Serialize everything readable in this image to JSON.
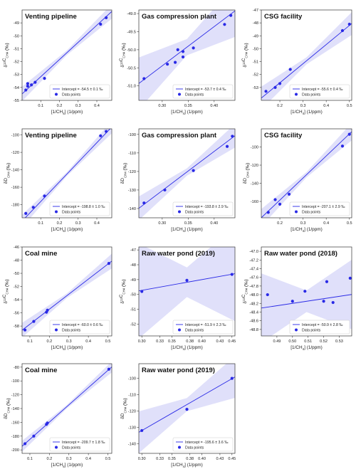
{
  "chart_data": [
    {
      "type": "scatter",
      "title": "Venting pipeline",
      "xlabel": "[1/CH4] (1/ppm)",
      "ylabel": "δ13C CH4 (‰)",
      "xlim": [
        0.0,
        0.48
      ],
      "ylim": [
        -55,
        -48
      ],
      "xticks": [
        0.1,
        0.2,
        0.3,
        0.4
      ],
      "xtick_labels": [
        "0.1",
        "0.2",
        "0.3",
        "0.4"
      ],
      "yticks": [
        -55,
        -54,
        -53,
        -52,
        -51,
        -50,
        -49
      ],
      "ytick_labels": [
        "-55",
        "-54",
        "-53",
        "-52",
        "-51",
        "-50",
        "-49"
      ],
      "x": [
        0.02,
        0.03,
        0.03,
        0.05,
        0.07,
        0.12,
        0.42,
        0.45
      ],
      "y": [
        -54.2,
        -53.9,
        -53.7,
        -53.8,
        -53.6,
        -53.3,
        -49.1,
        -48.6
      ],
      "fit": {
        "intercept": -54.5,
        "slope": 13.3,
        "band": 0.35
      },
      "legend": {
        "fit_label": "Intercept = -54.5 ± 0.1 ‰",
        "points_label": "Data points"
      }
    },
    {
      "type": "scatter",
      "title": "Gas compression plant",
      "xlabel": "[1/CH4] (1/ppm)",
      "ylabel": "δ13C CH4 (‰)",
      "xlim": [
        0.255,
        0.44
      ],
      "ylim": [
        -51.4,
        -48.9
      ],
      "xticks": [
        0.3,
        0.35,
        0.4
      ],
      "xtick_labels": [
        "0.30",
        "0.35",
        "0.40"
      ],
      "yticks": [
        -51.0,
        -50.5,
        -50.0,
        -49.5,
        -49.0
      ],
      "ytick_labels": [
        "-51.0",
        "-50.5",
        "-50.0",
        "-49.5",
        "-49.0"
      ],
      "x": [
        0.265,
        0.31,
        0.325,
        0.33,
        0.34,
        0.34,
        0.36,
        0.42,
        0.432
      ],
      "y": [
        -50.8,
        -50.4,
        -50.35,
        -50.0,
        -50.2,
        -50.05,
        -49.95,
        -49.3,
        -49.05
      ],
      "fit": {
        "intercept": -53.7,
        "slope": 10.85,
        "band": 0.45
      },
      "legend": {
        "fit_label": "Intercept = -53.7 ± 0.4 ‰",
        "points_label": "Data points"
      }
    },
    {
      "type": "scatter",
      "title": "CSG facility",
      "xlabel": "[1/CH4] (1/ppm)",
      "ylabel": "δ13C CH4 (‰)",
      "xlim": [
        0.12,
        0.51
      ],
      "ylim": [
        -54,
        -47
      ],
      "xticks": [
        0.2,
        0.3,
        0.4,
        0.5
      ],
      "xtick_labels": [
        "0.2",
        "0.3",
        "0.4",
        "0.5"
      ],
      "yticks": [
        -53,
        -52,
        -51,
        -50,
        -49,
        -48,
        -47
      ],
      "ytick_labels": [
        "-53",
        "-52",
        "-51",
        "-50",
        "-49",
        "-48",
        "-47"
      ],
      "x": [
        0.14,
        0.18,
        0.2,
        0.245,
        0.47,
        0.5
      ],
      "y": [
        -53.3,
        -53.0,
        -52.7,
        -51.6,
        -48.6,
        -48.1
      ],
      "fit": {
        "intercept": -55.6,
        "slope": 14.8,
        "band": 0.55
      },
      "legend": {
        "fit_label": "Intercept = -55.6 ± 0.4 ‰",
        "points_label": "Data points"
      }
    },
    {
      "type": "scatter",
      "title": "Venting pipeline",
      "xlabel": "[1/CH4] (1/ppm)",
      "ylabel": "δD CH4 (‰)",
      "xlim": [
        0.0,
        0.48
      ],
      "ylim": [
        -195,
        -93
      ],
      "xticks": [
        0.1,
        0.2,
        0.3,
        0.4
      ],
      "xtick_labels": [
        "0.1",
        "0.2",
        "0.3",
        "0.4"
      ],
      "yticks": [
        -180,
        -160,
        -140,
        -120,
        -100
      ],
      "ytick_labels": [
        "-180",
        "-160",
        "-140",
        "-120",
        "-100"
      ],
      "x": [
        0.02,
        0.06,
        0.12,
        0.42,
        0.45
      ],
      "y": [
        -190,
        -183,
        -170,
        -101,
        -96
      ],
      "fit": {
        "intercept": -198.8,
        "slope": 224.7,
        "band": 4.5
      },
      "legend": {
        "fit_label": "Intercept = -198.8 ± 1.0 ‰",
        "points_label": "Data points"
      }
    },
    {
      "type": "scatter",
      "title": "Gas compression plant",
      "xlabel": "[1/CH4] (1/ppm)",
      "ylabel": "δD CH4 (‰)",
      "xlim": [
        0.255,
        0.44
      ],
      "ylim": [
        -145,
        -97
      ],
      "xticks": [
        0.3,
        0.35,
        0.4
      ],
      "xtick_labels": [
        "0.30",
        "0.35",
        "0.40"
      ],
      "yticks": [
        -140,
        -130,
        -120,
        -110,
        -100
      ],
      "ytick_labels": [
        "-140",
        "-130",
        "-120",
        "-110",
        "-100"
      ],
      "x": [
        0.265,
        0.305,
        0.36,
        0.425,
        0.435
      ],
      "y": [
        -137,
        -130,
        -119.5,
        -106.5,
        -101
      ],
      "fit": {
        "intercept": -193.8,
        "slope": 211.5,
        "band": 4.0
      },
      "legend": {
        "fit_label": "Intercept = -193.8 ± 2.9 ‰",
        "points_label": "Data points"
      }
    },
    {
      "type": "scatter",
      "title": "CSG facility",
      "xlabel": "[1/CH4] (1/ppm)",
      "ylabel": "δD CH4 (‰)",
      "xlim": [
        0.12,
        0.51
      ],
      "ylim": [
        -178,
        -80
      ],
      "xticks": [
        0.2,
        0.3,
        0.4,
        0.5
      ],
      "xtick_labels": [
        "0.2",
        "0.3",
        "0.4",
        "0.5"
      ],
      "yticks": [
        -160,
        -140,
        -120,
        -100
      ],
      "ytick_labels": [
        "-160",
        "-140",
        "-120",
        "-100"
      ],
      "x": [
        0.15,
        0.18,
        0.2,
        0.24,
        0.47,
        0.5
      ],
      "y": [
        -172,
        -158,
        -163,
        -152,
        -99,
        -86
      ],
      "fit": {
        "intercept": -207.1,
        "slope": 243.0,
        "band": 6.0
      },
      "legend": {
        "fit_label": "Intercept = -207.1 ± 2.9 ‰",
        "points_label": "Data points"
      }
    },
    {
      "type": "scatter",
      "title": "Coal mine",
      "xlabel": "[1/CH4] (1/ppm)",
      "ylabel": "δ13C CH4 (‰)",
      "xlim": [
        0.06,
        0.52
      ],
      "ylim": [
        -59.5,
        -46
      ],
      "xticks": [
        0.1,
        0.2,
        0.3,
        0.4,
        0.5
      ],
      "xtick_labels": [
        "0.1",
        "0.2",
        "0.3",
        "0.4",
        "0.5"
      ],
      "yticks": [
        -58,
        -56,
        -54,
        -52,
        -50,
        -48,
        -46
      ],
      "ytick_labels": [
        "-58",
        "-56",
        "-54",
        "-52",
        "-50",
        "-48",
        "-46"
      ],
      "x": [
        0.075,
        0.12,
        0.185,
        0.19,
        0.505
      ],
      "y": [
        -58.6,
        -57.3,
        -55.9,
        -55.6,
        -48.5
      ],
      "fit": {
        "intercept": -60.0,
        "slope": 22.8,
        "band": 0.7
      },
      "legend": {
        "fit_label": "Intercept = -60.0 ± 0.6 ‰",
        "points_label": "Data points"
      }
    },
    {
      "type": "scatter",
      "title": "Raw water pond (2019)",
      "xlabel": "[1/CH4] (1/ppm)",
      "ylabel": "δ13C CH4 (‰)",
      "xlim": [
        0.295,
        0.455
      ],
      "ylim": [
        -52.8,
        -46.8
      ],
      "xticks": [
        0.3,
        0.33,
        0.35,
        0.38,
        0.4,
        0.43,
        0.45
      ],
      "xtick_labels": [
        "0.30",
        "0.33",
        "0.35",
        "0.38",
        "0.40",
        "0.43",
        "0.45"
      ],
      "yticks": [
        -52,
        -51,
        -50,
        -49,
        -48,
        -47
      ],
      "ytick_labels": [
        "-52",
        "-51",
        "-50",
        "-49",
        "-48",
        "-47"
      ],
      "x": [
        0.3,
        0.375,
        0.45
      ],
      "y": [
        -49.8,
        -49.05,
        -48.65
      ],
      "fit": {
        "intercept": -51.9,
        "slope": 7.25,
        "band": 2.0
      },
      "legend": {
        "fit_label": "Intercept = -51.9 ± 2.3 ‰",
        "points_label": "Data points"
      }
    },
    {
      "type": "scatter",
      "title": "Raw water pond (2018)",
      "xlabel": "[1/CH4] (1/ppm)",
      "ylabel": "δ13C CH4 (‰)",
      "xlim": [
        0.48,
        0.538
      ],
      "ylim": [
        -48.95,
        -46.9
      ],
      "xticks": [
        0.49,
        0.5,
        0.51,
        0.52,
        0.53
      ],
      "xtick_labels": [
        "0.49",
        "0.50",
        "0.51",
        "0.52",
        "0.53"
      ],
      "yticks": [
        -48.8,
        -48.6,
        -48.4,
        -48.2,
        -48.0,
        -47.8,
        -47.6,
        -47.4,
        -47.2,
        -47.0
      ],
      "ytick_labels": [
        "-48.8",
        "-48.6",
        "-48.4",
        "-48.2",
        "-48.0",
        "-47.8",
        "-47.6",
        "-47.4",
        "-47.2",
        "-47.0"
      ],
      "x": [
        0.484,
        0.5,
        0.508,
        0.52,
        0.522,
        0.526,
        0.537
      ],
      "y": [
        -48.0,
        -48.15,
        -47.92,
        -48.15,
        -47.7,
        -48.18,
        -47.62
      ],
      "fit": {
        "intercept": -50.9,
        "slope": 5.4,
        "band": 0.5
      },
      "legend": {
        "fit_label": "Intercept = -50.9 ± 2.8 ‰",
        "points_label": "Data points"
      }
    },
    {
      "type": "scatter",
      "title": "Coal mine",
      "xlabel": "[1/CH4] (1/ppm)",
      "ylabel": "δD CH4 (‰)",
      "xlim": [
        0.06,
        0.52
      ],
      "ylim": [
        -205,
        -75
      ],
      "xticks": [
        0.1,
        0.2,
        0.3,
        0.4,
        0.5
      ],
      "xtick_labels": [
        "0.1",
        "0.2",
        "0.3",
        "0.4",
        "0.5"
      ],
      "yticks": [
        -200,
        -180,
        -160,
        -140,
        -120,
        -100,
        -80
      ],
      "ytick_labels": [
        "-200",
        "-180",
        "-160",
        "-140",
        "-120",
        "-100",
        "-80"
      ],
      "x": [
        0.075,
        0.12,
        0.185,
        0.19,
        0.505
      ],
      "y": [
        -191,
        -180,
        -163,
        -161,
        -83
      ],
      "fit": {
        "intercept": -209.7,
        "slope": 250.0,
        "band": 5.0
      },
      "legend": {
        "fit_label": "Intercept = -209.7 ± 1.8 ‰",
        "points_label": "Data points"
      }
    },
    {
      "type": "scatter",
      "title": "Raw water pond (2019)",
      "xlabel": "[1/CH4] (1/ppm)",
      "ylabel": "δD CH4 (‰)",
      "xlim": [
        0.295,
        0.455
      ],
      "ylim": [
        -146,
        -91
      ],
      "xticks": [
        0.3,
        0.33,
        0.35,
        0.38,
        0.4,
        0.43,
        0.45
      ],
      "xtick_labels": [
        "0.30",
        "0.33",
        "0.35",
        "0.38",
        "0.40",
        "0.43",
        "0.45"
      ],
      "yticks": [
        -140,
        -130,
        -120,
        -110,
        -100
      ],
      "ytick_labels": [
        "-140",
        "-130",
        "-120",
        "-110",
        "-100"
      ],
      "x": [
        0.3,
        0.375,
        0.45
      ],
      "y": [
        -132,
        -119,
        -100
      ],
      "fit": {
        "intercept": -195.6,
        "slope": 212.0,
        "band": 8.0
      },
      "legend": {
        "fit_label": "Intercept = -195.6 ± 3.6 ‰",
        "points_label": "Data points"
      }
    }
  ],
  "colors": {
    "series": "#2929e6",
    "band": "#e0e0fa"
  }
}
